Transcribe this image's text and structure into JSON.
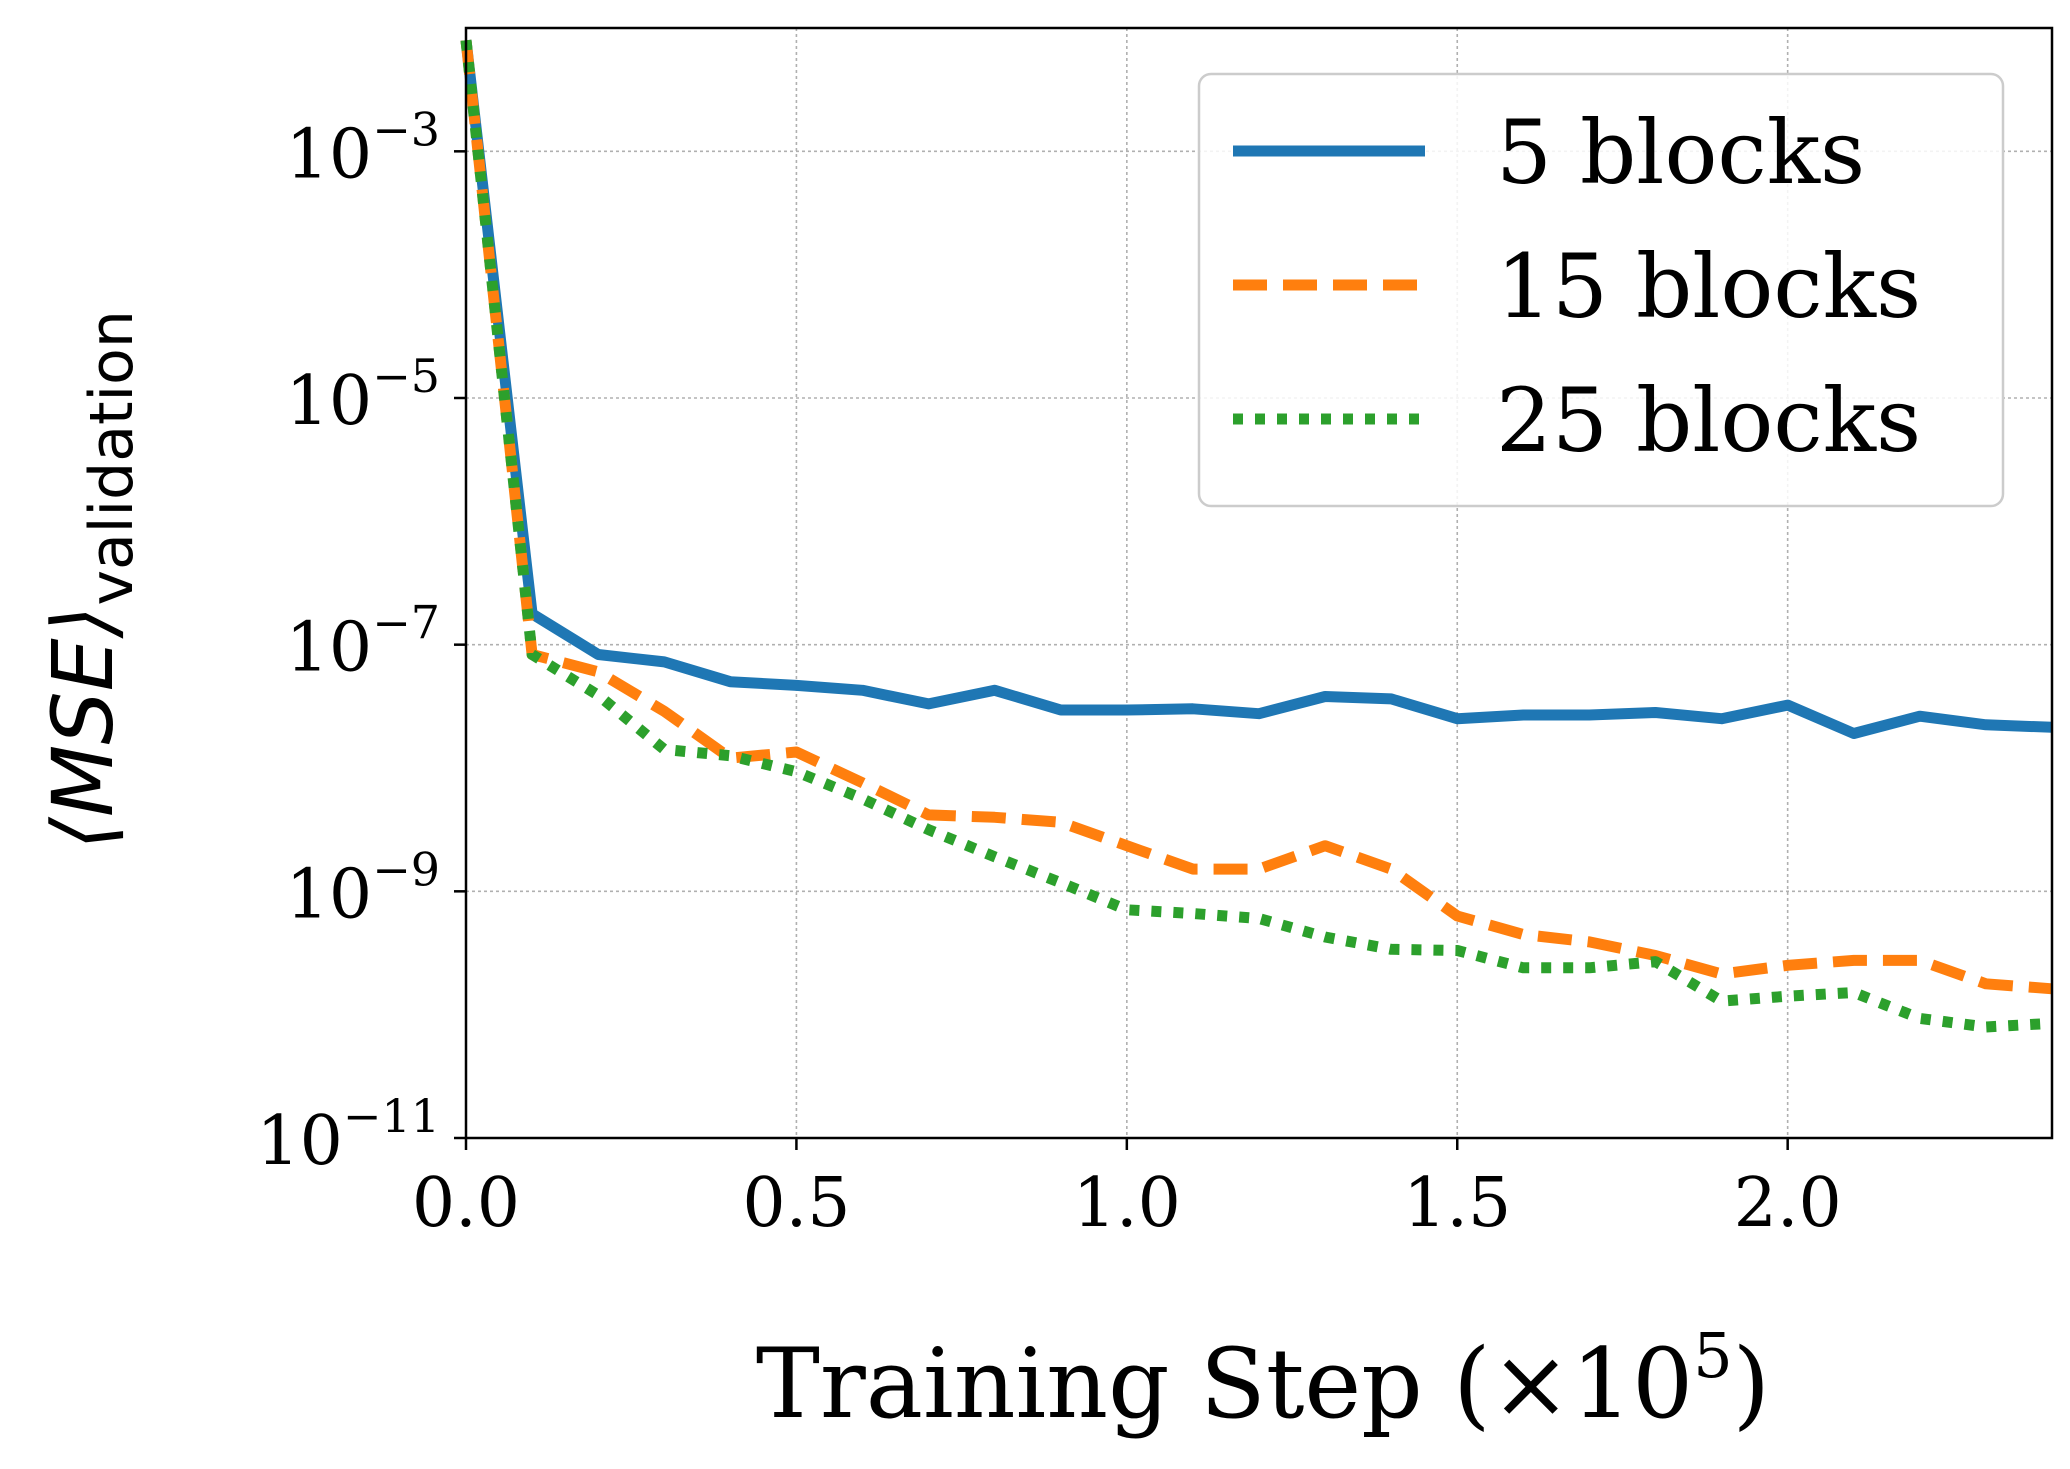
{
  "chart_data": {
    "type": "line",
    "xlabel_main": "Training Step (×10",
    "xlabel_exp": "5",
    "xlabel_close": ")",
    "ylabel_main": "⟨MSE⟩",
    "ylabel_sub": "validation",
    "xlim": [
      0,
      2.4
    ],
    "ylim_log10": [
      -11,
      -2
    ],
    "y_scale": "log",
    "grid": true,
    "legend_position": "top-right",
    "x_ticks": [
      {
        "value": 0.0,
        "label": "0.0"
      },
      {
        "value": 0.5,
        "label": "0.5"
      },
      {
        "value": 1.0,
        "label": "1.0"
      },
      {
        "value": 1.5,
        "label": "1.5"
      },
      {
        "value": 2.0,
        "label": "2.0"
      }
    ],
    "y_ticks": [
      {
        "exp": -3,
        "base": "10",
        "label": "−3"
      },
      {
        "exp": -5,
        "base": "10",
        "label": "−5"
      },
      {
        "exp": -7,
        "base": "10",
        "label": "−7"
      },
      {
        "exp": -9,
        "base": "10",
        "label": "−9"
      },
      {
        "exp": -11,
        "base": "10",
        "label": "−11"
      }
    ],
    "series": [
      {
        "name": "5 blocks",
        "color": "#1f77b4",
        "style": "solid",
        "x": [
          0.0,
          0.1,
          0.2,
          0.3,
          0.4,
          0.5,
          0.6,
          0.7,
          0.8,
          0.9,
          1.0,
          1.1,
          1.2,
          1.3,
          1.4,
          1.5,
          1.6,
          1.7,
          1.8,
          1.9,
          2.0,
          2.1,
          2.2,
          2.3,
          2.4
        ],
        "log10_y": [
          -2.1,
          -6.75,
          -7.08,
          -7.14,
          -7.3,
          -7.33,
          -7.37,
          -7.48,
          -7.37,
          -7.53,
          -7.53,
          -7.52,
          -7.56,
          -7.42,
          -7.44,
          -7.6,
          -7.57,
          -7.57,
          -7.55,
          -7.6,
          -7.49,
          -7.72,
          -7.58,
          -7.65,
          -7.67
        ]
      },
      {
        "name": "15 blocks",
        "color": "#ff7f0e",
        "style": "dashed",
        "x": [
          0.0,
          0.1,
          0.2,
          0.3,
          0.4,
          0.5,
          0.6,
          0.7,
          0.8,
          0.9,
          1.0,
          1.1,
          1.2,
          1.3,
          1.4,
          1.5,
          1.6,
          1.7,
          1.8,
          1.9,
          2.0,
          2.1,
          2.2,
          2.3,
          2.4
        ],
        "log10_y": [
          -2.1,
          -7.08,
          -7.22,
          -7.54,
          -7.92,
          -7.87,
          -8.12,
          -8.38,
          -8.4,
          -8.44,
          -8.63,
          -8.82,
          -8.82,
          -8.63,
          -8.82,
          -9.2,
          -9.35,
          -9.41,
          -9.52,
          -9.67,
          -9.6,
          -9.56,
          -9.56,
          -9.75,
          -9.79
        ]
      },
      {
        "name": "25 blocks",
        "color": "#2ca02c",
        "style": "dotted",
        "x": [
          0.0,
          0.1,
          0.2,
          0.3,
          0.4,
          0.5,
          0.6,
          0.7,
          0.8,
          0.9,
          1.0,
          1.1,
          1.2,
          1.3,
          1.4,
          1.5,
          1.6,
          1.7,
          1.8,
          1.9,
          2.0,
          2.1,
          2.2,
          2.3,
          2.4
        ],
        "log10_y": [
          -2.1,
          -7.08,
          -7.41,
          -7.85,
          -7.9,
          -8.03,
          -8.25,
          -8.5,
          -8.72,
          -8.93,
          -9.15,
          -9.18,
          -9.22,
          -9.37,
          -9.47,
          -9.48,
          -9.62,
          -9.62,
          -9.57,
          -9.89,
          -9.85,
          -9.82,
          -10.03,
          -10.1,
          -10.07
        ]
      }
    ]
  }
}
